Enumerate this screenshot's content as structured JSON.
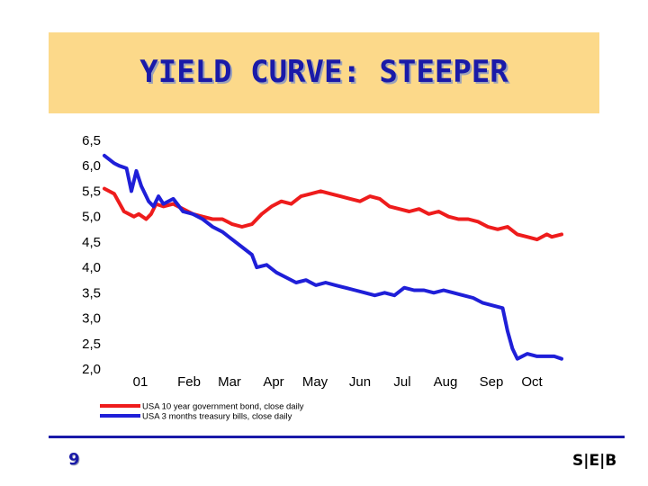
{
  "slide": {
    "title": "YIELD CURVE: STEEPER",
    "page_number": "9",
    "logo_text": "S|E|B"
  },
  "chart_data": {
    "type": "line",
    "title": "",
    "xlabel": "",
    "ylabel": "",
    "ylim": [
      2.0,
      6.5
    ],
    "y_ticks": [
      "6,5",
      "6,0",
      "5,5",
      "5,0",
      "4,5",
      "4,0",
      "3,5",
      "3,0",
      "2,5",
      "2,0"
    ],
    "x_ticks": [
      "01",
      "Feb",
      "Mar",
      "Apr",
      "May",
      "Jun",
      "Jul",
      "Aug",
      "Sep",
      "Oct"
    ],
    "grid": false,
    "legend_position": "bottom-left",
    "series": [
      {
        "name": "USA 10 year government bond, close daily",
        "color": "#ee1c1c",
        "points": [
          [
            0.0,
            5.55
          ],
          [
            0.2,
            5.45
          ],
          [
            0.4,
            5.1
          ],
          [
            0.6,
            5.0
          ],
          [
            0.7,
            5.05
          ],
          [
            0.85,
            4.95
          ],
          [
            0.95,
            5.05
          ],
          [
            1.05,
            5.25
          ],
          [
            1.2,
            5.2
          ],
          [
            1.4,
            5.25
          ],
          [
            1.6,
            5.15
          ],
          [
            1.8,
            5.05
          ],
          [
            2.0,
            5.0
          ],
          [
            2.2,
            4.95
          ],
          [
            2.4,
            4.95
          ],
          [
            2.6,
            4.85
          ],
          [
            2.8,
            4.8
          ],
          [
            3.0,
            4.85
          ],
          [
            3.2,
            5.05
          ],
          [
            3.4,
            5.2
          ],
          [
            3.6,
            5.3
          ],
          [
            3.8,
            5.25
          ],
          [
            4.0,
            5.4
          ],
          [
            4.2,
            5.45
          ],
          [
            4.4,
            5.5
          ],
          [
            4.6,
            5.45
          ],
          [
            4.8,
            5.4
          ],
          [
            5.0,
            5.35
          ],
          [
            5.2,
            5.3
          ],
          [
            5.4,
            5.4
          ],
          [
            5.6,
            5.35
          ],
          [
            5.8,
            5.2
          ],
          [
            6.0,
            5.15
          ],
          [
            6.2,
            5.1
          ],
          [
            6.4,
            5.15
          ],
          [
            6.6,
            5.05
          ],
          [
            6.8,
            5.1
          ],
          [
            7.0,
            5.0
          ],
          [
            7.2,
            4.95
          ],
          [
            7.4,
            4.95
          ],
          [
            7.6,
            4.9
          ],
          [
            7.8,
            4.8
          ],
          [
            8.0,
            4.75
          ],
          [
            8.2,
            4.8
          ],
          [
            8.4,
            4.65
          ],
          [
            8.6,
            4.6
          ],
          [
            8.8,
            4.55
          ],
          [
            9.0,
            4.65
          ],
          [
            9.1,
            4.6
          ],
          [
            9.3,
            4.65
          ]
        ]
      },
      {
        "name": "USA 3 months treasury bills, close daily",
        "color": "#1f1fd8",
        "points": [
          [
            0.0,
            6.2
          ],
          [
            0.2,
            6.05
          ],
          [
            0.3,
            6.0
          ],
          [
            0.45,
            5.95
          ],
          [
            0.55,
            5.5
          ],
          [
            0.65,
            5.9
          ],
          [
            0.75,
            5.6
          ],
          [
            0.9,
            5.3
          ],
          [
            1.0,
            5.2
          ],
          [
            1.1,
            5.4
          ],
          [
            1.2,
            5.25
          ],
          [
            1.4,
            5.35
          ],
          [
            1.6,
            5.1
          ],
          [
            1.8,
            5.05
          ],
          [
            2.0,
            4.95
          ],
          [
            2.2,
            4.8
          ],
          [
            2.4,
            4.7
          ],
          [
            2.6,
            4.55
          ],
          [
            2.8,
            4.4
          ],
          [
            3.0,
            4.25
          ],
          [
            3.1,
            4.0
          ],
          [
            3.3,
            4.05
          ],
          [
            3.5,
            3.9
          ],
          [
            3.7,
            3.8
          ],
          [
            3.9,
            3.7
          ],
          [
            4.1,
            3.75
          ],
          [
            4.3,
            3.65
          ],
          [
            4.5,
            3.7
          ],
          [
            4.7,
            3.65
          ],
          [
            4.9,
            3.6
          ],
          [
            5.1,
            3.55
          ],
          [
            5.3,
            3.5
          ],
          [
            5.5,
            3.45
          ],
          [
            5.7,
            3.5
          ],
          [
            5.9,
            3.45
          ],
          [
            6.1,
            3.6
          ],
          [
            6.3,
            3.55
          ],
          [
            6.5,
            3.55
          ],
          [
            6.7,
            3.5
          ],
          [
            6.9,
            3.55
          ],
          [
            7.1,
            3.5
          ],
          [
            7.3,
            3.45
          ],
          [
            7.5,
            3.4
          ],
          [
            7.7,
            3.3
          ],
          [
            7.9,
            3.25
          ],
          [
            8.1,
            3.2
          ],
          [
            8.2,
            2.75
          ],
          [
            8.3,
            2.4
          ],
          [
            8.4,
            2.2
          ],
          [
            8.6,
            2.3
          ],
          [
            8.8,
            2.25
          ],
          [
            9.0,
            2.25
          ],
          [
            9.15,
            2.25
          ],
          [
            9.3,
            2.2
          ]
        ]
      }
    ]
  }
}
